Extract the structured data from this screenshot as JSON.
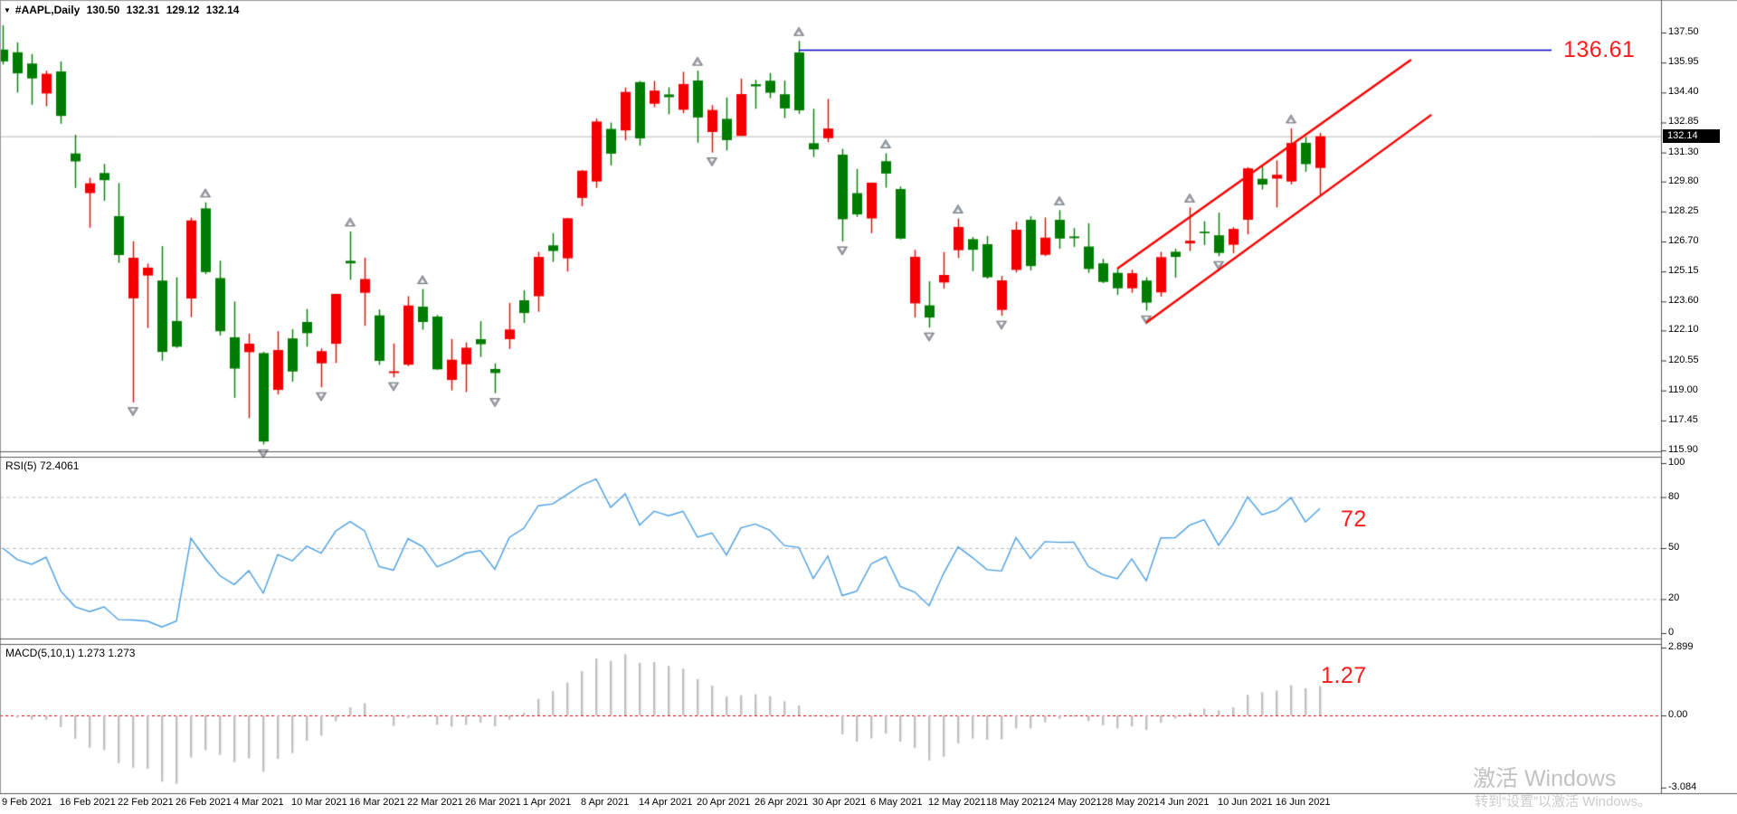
{
  "header": {
    "collapse_icon": "▼",
    "symbol": "#AAPL,Daily",
    "open": "130.50",
    "high": "132.31",
    "low": "129.12",
    "close": "132.14"
  },
  "colors": {
    "bull": "#f20000",
    "bear": "#007d00",
    "resistance_line": "#0000cc",
    "channel_line": "#ff0000",
    "rsi_line": "#4a9fe3",
    "macd_bars": "#c0c0c0",
    "current_price_line": "#b8b8b8",
    "level_dash": "#c0c0c0",
    "macd_zero_line": "#dd0000",
    "annotation_red": "#fe1c1c",
    "frame": "#5a5a5a",
    "arrow": "#a3a8ad"
  },
  "main_chart": {
    "price_ticks": [
      "137.50",
      "135.95",
      "134.40",
      "132.85",
      "131.30",
      "129.80",
      "128.25",
      "126.70",
      "125.15",
      "123.60",
      "122.10",
      "120.55",
      "119.00",
      "117.45",
      "115.90"
    ],
    "current_price": "132.14",
    "resistance_label": "136.61"
  },
  "rsi_panel": {
    "label": "RSI(5) 72.4061",
    "period": 5,
    "value": "72.4061",
    "ticks": [
      "100",
      "80",
      "50",
      "20",
      "0"
    ],
    "dashed_levels": [
      80,
      50,
      20
    ],
    "annotation": "72"
  },
  "macd_panel": {
    "label": "MACD(5,10,1) 1.273 1.273",
    "fast": 5,
    "slow": 10,
    "signal": 1,
    "value": "1.273",
    "ticks": [
      "2.899",
      "0.00",
      "-3.084"
    ],
    "annotation": "1.27"
  },
  "x_axis": {
    "labels": [
      {
        "bar": 0,
        "text": "9 Feb 2021"
      },
      {
        "bar": 4,
        "text": "16 Feb 2021"
      },
      {
        "bar": 8,
        "text": "22 Feb 2021"
      },
      {
        "bar": 12,
        "text": "26 Feb 2021"
      },
      {
        "bar": 16,
        "text": "4 Mar 2021"
      },
      {
        "bar": 20,
        "text": "10 Mar 2021"
      },
      {
        "bar": 24,
        "text": "16 Mar 2021"
      },
      {
        "bar": 28,
        "text": "22 Mar 2021"
      },
      {
        "bar": 32,
        "text": "26 Mar 2021"
      },
      {
        "bar": 36,
        "text": "1 Apr 2021"
      },
      {
        "bar": 40,
        "text": "8 Apr 2021"
      },
      {
        "bar": 44,
        "text": "14 Apr 2021"
      },
      {
        "bar": 48,
        "text": "20 Apr 2021"
      },
      {
        "bar": 52,
        "text": "26 Apr 2021"
      },
      {
        "bar": 56,
        "text": "30 Apr 2021"
      },
      {
        "bar": 60,
        "text": "6 May 2021"
      },
      {
        "bar": 64,
        "text": "12 May 2021"
      },
      {
        "bar": 68,
        "text": "18 May 2021"
      },
      {
        "bar": 72,
        "text": "24 May 2021"
      },
      {
        "bar": 76,
        "text": "28 May 2021"
      },
      {
        "bar": 80,
        "text": "4 Jun 2021"
      },
      {
        "bar": 84,
        "text": "10 Jun 2021"
      },
      {
        "bar": 88,
        "text": "16 Jun 2021"
      }
    ]
  },
  "watermark": {
    "line1": "激活 Windows",
    "line2": "转到“设置”以激活 Windows。"
  },
  "chart_data": {
    "type": "candlestick",
    "symbol": "#AAPL",
    "timeframe": "Daily",
    "price_range": [
      115.9,
      137.5
    ],
    "candles": [
      [
        "2021-02-09",
        136.62,
        137.88,
        135.85,
        136.01
      ],
      [
        "2021-02-10",
        136.48,
        136.99,
        134.4,
        135.39
      ],
      [
        "2021-02-11",
        135.9,
        136.39,
        133.77,
        135.13
      ],
      [
        "2021-02-12",
        134.35,
        135.53,
        133.69,
        135.37
      ],
      [
        "2021-02-16",
        135.49,
        136.01,
        132.79,
        133.19
      ],
      [
        "2021-02-17",
        131.25,
        132.22,
        129.47,
        130.84
      ],
      [
        "2021-02-18",
        129.2,
        129.99,
        127.41,
        129.71
      ],
      [
        "2021-02-19",
        130.24,
        130.71,
        128.8,
        129.87
      ],
      [
        "2021-02-22",
        128.01,
        129.72,
        125.6,
        126.0
      ],
      [
        "2021-02-23",
        123.76,
        126.71,
        118.39,
        125.86
      ],
      [
        "2021-02-24",
        124.94,
        125.56,
        122.23,
        125.35
      ],
      [
        "2021-02-25",
        124.68,
        126.46,
        120.54,
        120.99
      ],
      [
        "2021-02-26",
        122.59,
        124.85,
        121.2,
        121.26
      ],
      [
        "2021-03-01",
        123.75,
        127.93,
        122.79,
        127.79
      ],
      [
        "2021-03-02",
        128.41,
        128.72,
        125.01,
        125.12
      ],
      [
        "2021-03-03",
        124.81,
        125.71,
        121.84,
        122.06
      ],
      [
        "2021-03-04",
        121.75,
        123.6,
        118.62,
        120.13
      ],
      [
        "2021-03-05",
        120.98,
        121.94,
        117.57,
        121.42
      ],
      [
        "2021-03-08",
        120.93,
        121.0,
        116.21,
        116.36
      ],
      [
        "2021-03-09",
        119.03,
        122.06,
        118.79,
        121.09
      ],
      [
        "2021-03-10",
        121.69,
        122.17,
        119.45,
        119.98
      ],
      [
        "2021-03-11",
        122.54,
        123.21,
        121.26,
        121.96
      ],
      [
        "2021-03-12",
        120.4,
        121.17,
        119.16,
        121.03
      ],
      [
        "2021-03-15",
        121.41,
        124.0,
        120.42,
        123.99
      ],
      [
        "2021-03-16",
        125.7,
        127.22,
        124.72,
        125.57
      ],
      [
        "2021-03-17",
        124.05,
        125.86,
        122.34,
        124.76
      ],
      [
        "2021-03-18",
        122.88,
        123.18,
        120.32,
        120.53
      ],
      [
        "2021-03-19",
        119.9,
        121.43,
        119.68,
        119.99
      ],
      [
        "2021-03-22",
        120.33,
        123.87,
        120.26,
        123.39
      ],
      [
        "2021-03-23",
        123.33,
        124.24,
        122.14,
        122.54
      ],
      [
        "2021-03-24",
        122.82,
        122.9,
        120.07,
        120.09
      ],
      [
        "2021-03-25",
        119.54,
        121.66,
        119.0,
        120.59
      ],
      [
        "2021-03-26",
        120.35,
        121.48,
        118.92,
        121.21
      ],
      [
        "2021-03-29",
        121.65,
        122.58,
        120.73,
        121.39
      ],
      [
        "2021-03-30",
        120.11,
        120.4,
        118.86,
        119.9
      ],
      [
        "2021-03-31",
        121.65,
        123.52,
        121.15,
        122.15
      ],
      [
        "2021-04-01",
        123.66,
        124.18,
        122.49,
        123.0
      ],
      [
        "2021-04-05",
        123.87,
        126.16,
        123.07,
        125.9
      ],
      [
        "2021-04-06",
        126.5,
        127.13,
        125.65,
        126.21
      ],
      [
        "2021-04-07",
        125.83,
        127.92,
        125.14,
        127.9
      ],
      [
        "2021-04-08",
        128.95,
        130.39,
        128.52,
        130.36
      ],
      [
        "2021-04-09",
        129.8,
        133.05,
        129.47,
        132.9
      ],
      [
        "2021-04-12",
        132.52,
        132.85,
        130.63,
        131.24
      ],
      [
        "2021-04-13",
        132.44,
        134.66,
        131.93,
        134.43
      ],
      [
        "2021-04-14",
        134.94,
        135.0,
        131.66,
        132.03
      ],
      [
        "2021-04-15",
        133.82,
        135.0,
        133.64,
        134.5
      ],
      [
        "2021-04-16",
        134.3,
        134.67,
        133.28,
        134.16
      ],
      [
        "2021-04-19",
        133.51,
        135.47,
        133.34,
        134.84
      ],
      [
        "2021-04-20",
        135.02,
        135.53,
        131.81,
        133.11
      ],
      [
        "2021-04-21",
        132.36,
        133.75,
        131.3,
        133.5
      ],
      [
        "2021-04-22",
        133.04,
        134.15,
        131.41,
        131.94
      ],
      [
        "2021-04-23",
        132.16,
        135.12,
        132.16,
        134.32
      ],
      [
        "2021-04-26",
        134.83,
        135.06,
        133.56,
        134.72
      ],
      [
        "2021-04-27",
        135.01,
        135.41,
        134.11,
        134.39
      ],
      [
        "2021-04-28",
        134.31,
        135.02,
        133.08,
        133.58
      ],
      [
        "2021-04-29",
        136.47,
        137.07,
        133.3,
        133.48
      ],
      [
        "2021-04-30",
        131.78,
        133.56,
        131.07,
        131.46
      ],
      [
        "2021-05-03",
        132.04,
        134.07,
        131.83,
        132.54
      ],
      [
        "2021-05-04",
        131.19,
        131.49,
        126.7,
        127.85
      ],
      [
        "2021-05-05",
        129.2,
        130.45,
        127.97,
        128.1
      ],
      [
        "2021-05-06",
        127.89,
        129.75,
        127.13,
        129.74
      ],
      [
        "2021-05-07",
        130.85,
        131.26,
        129.48,
        130.21
      ],
      [
        "2021-05-10",
        129.41,
        129.54,
        126.81,
        126.85
      ],
      [
        "2021-05-11",
        123.5,
        126.27,
        122.77,
        125.91
      ],
      [
        "2021-05-12",
        123.4,
        124.64,
        122.25,
        122.77
      ],
      [
        "2021-05-13",
        124.58,
        126.15,
        124.26,
        124.97
      ],
      [
        "2021-05-14",
        126.25,
        127.89,
        125.85,
        127.45
      ],
      [
        "2021-05-17",
        126.82,
        126.93,
        125.17,
        126.27
      ],
      [
        "2021-05-18",
        126.56,
        126.99,
        124.78,
        124.85
      ],
      [
        "2021-05-19",
        123.16,
        124.92,
        122.86,
        124.69
      ],
      [
        "2021-05-20",
        125.23,
        127.72,
        125.1,
        127.31
      ],
      [
        "2021-05-21",
        127.82,
        128.0,
        125.21,
        125.43
      ],
      [
        "2021-05-24",
        126.01,
        127.94,
        125.94,
        126.9
      ],
      [
        "2021-05-25",
        127.82,
        128.32,
        126.32,
        126.85
      ],
      [
        "2021-05-26",
        126.96,
        127.39,
        126.42,
        126.87
      ],
      [
        "2021-05-27",
        126.44,
        127.64,
        125.08,
        125.28
      ],
      [
        "2021-05-28",
        125.57,
        125.8,
        124.55,
        124.61
      ],
      [
        "2021-06-01",
        125.08,
        125.35,
        123.94,
        124.28
      ],
      [
        "2021-06-02",
        124.28,
        125.24,
        124.05,
        125.06
      ],
      [
        "2021-06-03",
        124.68,
        124.85,
        123.13,
        123.54
      ],
      [
        "2021-06-04",
        124.07,
        126.16,
        123.85,
        125.89
      ],
      [
        "2021-06-07",
        126.17,
        126.32,
        124.83,
        125.9
      ],
      [
        "2021-06-08",
        126.6,
        128.46,
        126.21,
        126.74
      ],
      [
        "2021-06-09",
        127.21,
        127.75,
        126.52,
        127.13
      ],
      [
        "2021-06-10",
        127.02,
        128.19,
        125.94,
        126.11
      ],
      [
        "2021-06-11",
        126.53,
        127.44,
        126.1,
        127.35
      ],
      [
        "2021-06-14",
        127.82,
        130.54,
        127.07,
        130.48
      ],
      [
        "2021-06-15",
        129.94,
        130.6,
        129.39,
        129.64
      ],
      [
        "2021-06-16",
        129.95,
        130.89,
        128.46,
        130.15
      ],
      [
        "2021-06-17",
        129.8,
        132.55,
        129.65,
        131.79
      ],
      [
        "2021-06-18",
        131.8,
        132.1,
        130.3,
        130.7
      ],
      [
        "2021-06-21",
        130.5,
        132.31,
        129.12,
        132.14
      ]
    ],
    "indicators": [
      {
        "type": "RSI",
        "period": 5,
        "last_value": 72.4061,
        "levels": [
          80,
          50,
          20
        ],
        "range": [
          0,
          100
        ]
      },
      {
        "type": "MACD",
        "fast": 5,
        "slow": 10,
        "signal": 1,
        "last_value": 1.273,
        "range": [
          -3.084,
          2.899
        ]
      },
      {
        "type": "Fractals"
      }
    ],
    "annotations": [
      {
        "type": "hline",
        "price": 136.61,
        "from_bar": 55,
        "to_bar": 107,
        "label": "136.61"
      },
      {
        "type": "trendline",
        "from": {
          "bar": 77,
          "price": 125.3
        },
        "to": {
          "bar": 97.3,
          "price": 136.1
        }
      },
      {
        "type": "trendline",
        "from": {
          "bar": 79,
          "price": 122.5
        },
        "to": {
          "bar": 98.7,
          "price": 133.25
        }
      },
      {
        "type": "text",
        "text": "136.61",
        "panel": "main"
      },
      {
        "type": "text",
        "text": "72",
        "panel": "rsi"
      },
      {
        "type": "text",
        "text": "1.27",
        "panel": "macd"
      }
    ]
  }
}
